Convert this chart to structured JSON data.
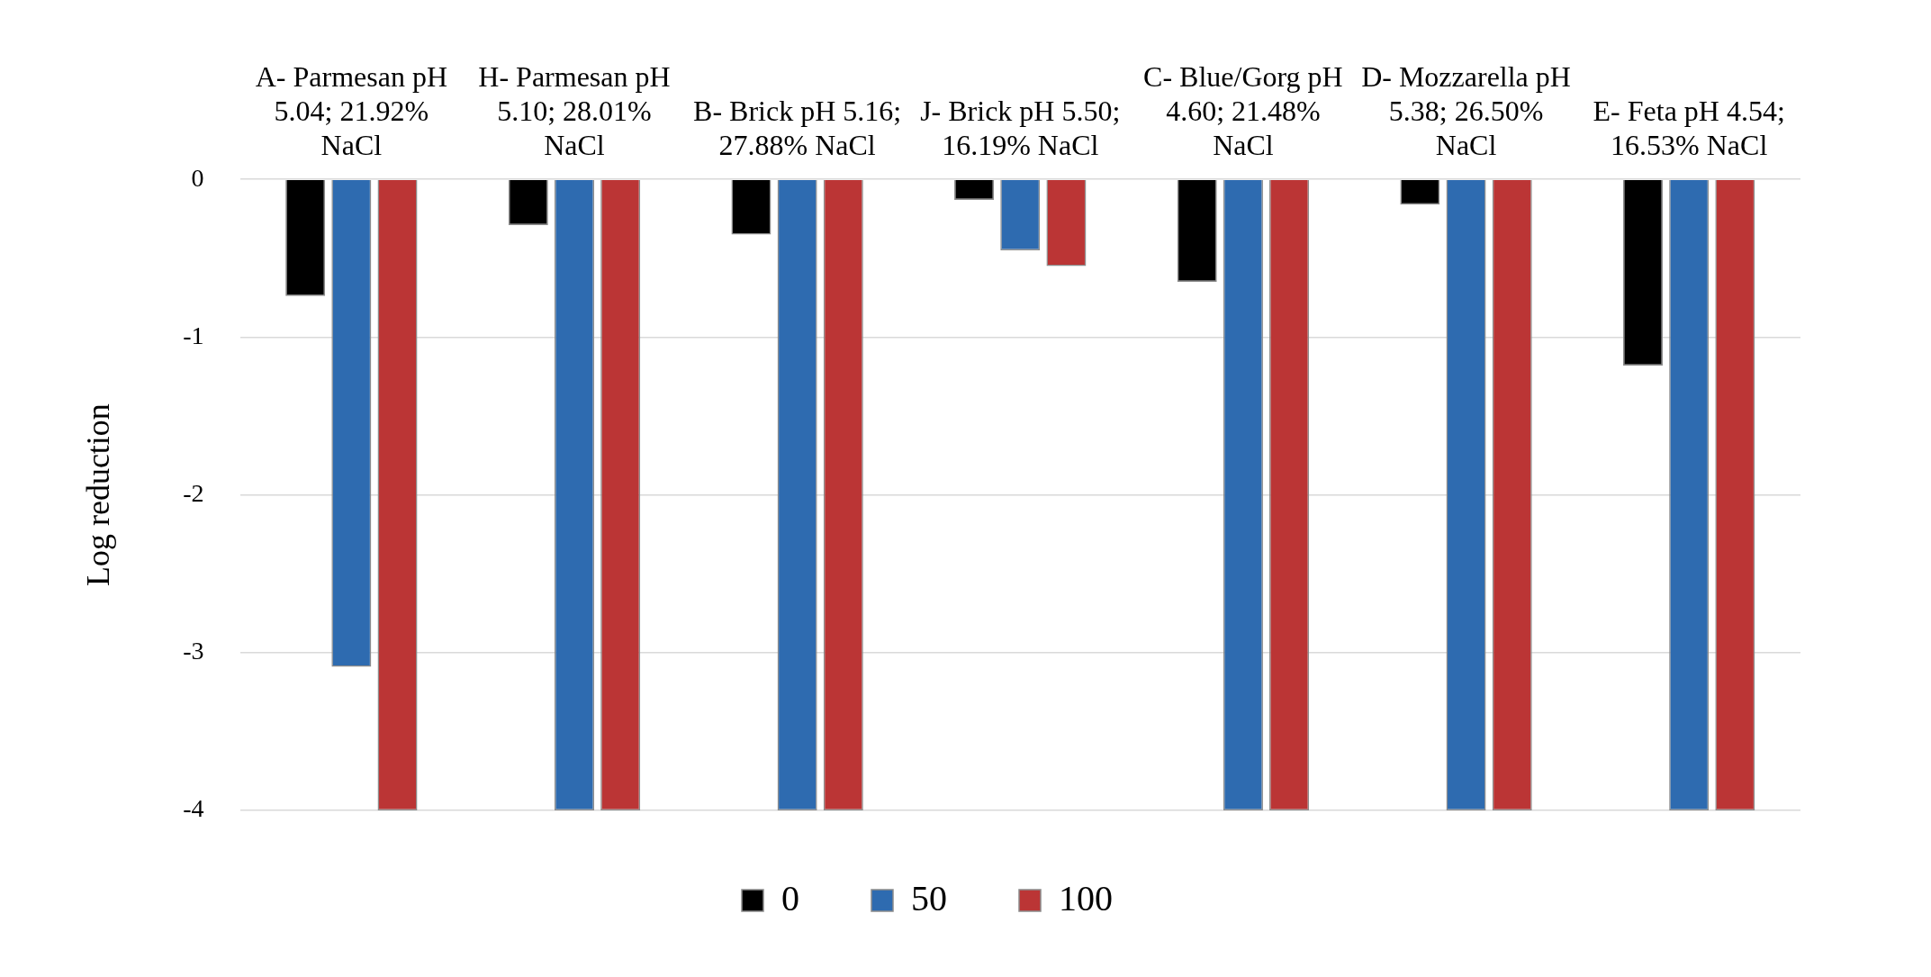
{
  "chart_data": {
    "type": "bar",
    "ylabel": "Log reduction",
    "categories": [
      "A- Parmesan pH 5.04; 21.92% NaCl",
      "H- Parmesan pH 5.10; 28.01% NaCl",
      "B- Brick pH 5.16; 27.88% NaCl",
      "J- Brick pH 5.50; 16.19% NaCl",
      "C- Blue/Gorg pH 4.60; 21.48% NaCl",
      "D- Mozzarella pH 5.38; 26.50% NaCl",
      "E- Feta pH 4.54; 16.53% NaCl"
    ],
    "series": [
      {
        "name": "0",
        "color": "#000000",
        "values": [
          -0.74,
          -0.29,
          -0.35,
          -0.13,
          -0.65,
          -0.16,
          -1.18
        ]
      },
      {
        "name": "50",
        "color": "#2e6bb0",
        "values": [
          -3.09,
          -4,
          -4,
          -0.45,
          -4,
          -4,
          -4
        ]
      },
      {
        "name": "100",
        "color": "#bb3535",
        "values": [
          -4,
          -4,
          -4,
          -0.55,
          -4,
          -4,
          -4
        ]
      }
    ],
    "ylim": [
      -4,
      0
    ],
    "yticks": [
      -4,
      -3,
      -2,
      -1,
      0
    ],
    "grid": "y",
    "legend": "bottom"
  }
}
